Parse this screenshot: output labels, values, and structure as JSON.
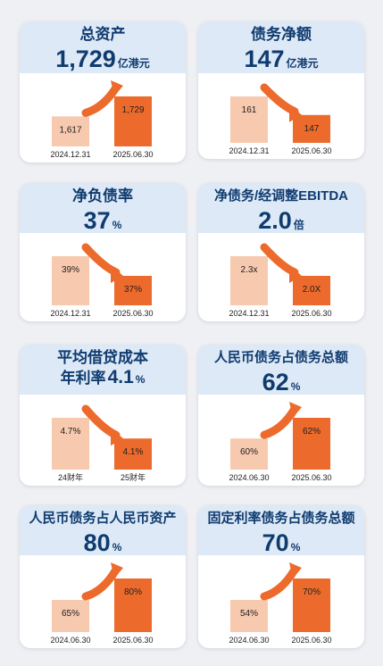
{
  "colors": {
    "light_bar": "#f7c9ae",
    "dark_bar": "#ec6a2b",
    "header_bg": "#dde9f6",
    "title": "#0f3b6f"
  },
  "cards": [
    {
      "title": "总资产",
      "value": "1,729",
      "unit": "亿港元"
    },
    {
      "title": "债务净额",
      "value": "147",
      "unit": "亿港元"
    },
    {
      "title": "净负债率",
      "value": "37",
      "unit": "%"
    },
    {
      "title": "净债务/经调整EBITDA",
      "value": "2.0",
      "unit": "倍"
    },
    {
      "title": "平均借贷成本",
      "title2": "年利率",
      "value": "4.1",
      "unit": "%"
    },
    {
      "title": "人民币债务占债务总额",
      "value": "62",
      "unit": "%"
    },
    {
      "title": "人民币债务占人民币资产",
      "value": "80",
      "unit": "%"
    },
    {
      "title": "固定利率债务占债务总额",
      "value": "70",
      "unit": "%"
    }
  ],
  "chart_data": [
    {
      "type": "bar",
      "categories": [
        "2024.12.31",
        "2025.06.30"
      ],
      "values": [
        1617,
        1729
      ],
      "labels": [
        "1,617",
        "1,729"
      ],
      "title": "总资产"
    },
    {
      "type": "bar",
      "categories": [
        "2024.12.31",
        "2025.06.30"
      ],
      "values": [
        161,
        147
      ],
      "labels": [
        "161",
        "147"
      ],
      "title": "债务净额"
    },
    {
      "type": "bar",
      "categories": [
        "2024.12.31",
        "2025.06.30"
      ],
      "values": [
        39,
        37
      ],
      "labels": [
        "39%",
        "37%"
      ],
      "title": "净负债率"
    },
    {
      "type": "bar",
      "categories": [
        "2024.12.31",
        "2025.06.30"
      ],
      "values": [
        2.3,
        2.0
      ],
      "labels": [
        "2.3x",
        "2.0X"
      ],
      "title": "净债务/经调整EBITDA"
    },
    {
      "type": "bar",
      "categories": [
        "24财年",
        "25财年"
      ],
      "values": [
        4.7,
        4.1
      ],
      "labels": [
        "4.7%",
        "4.1%"
      ],
      "title": "平均借贷成本 年利率"
    },
    {
      "type": "bar",
      "categories": [
        "2024.06.30",
        "2025.06.30"
      ],
      "values": [
        60,
        62
      ],
      "labels": [
        "60%",
        "62%"
      ],
      "title": "人民币债务占债务总额"
    },
    {
      "type": "bar",
      "categories": [
        "2024.06.30",
        "2025.06.30"
      ],
      "values": [
        65,
        80
      ],
      "labels": [
        "65%",
        "80%"
      ],
      "title": "人民币债务占人民币资产"
    },
    {
      "type": "bar",
      "categories": [
        "2024.06.30",
        "2025.06.30"
      ],
      "values": [
        54,
        70
      ],
      "labels": [
        "54%",
        "70%"
      ],
      "title": "固定利率债务占债务总额"
    }
  ]
}
